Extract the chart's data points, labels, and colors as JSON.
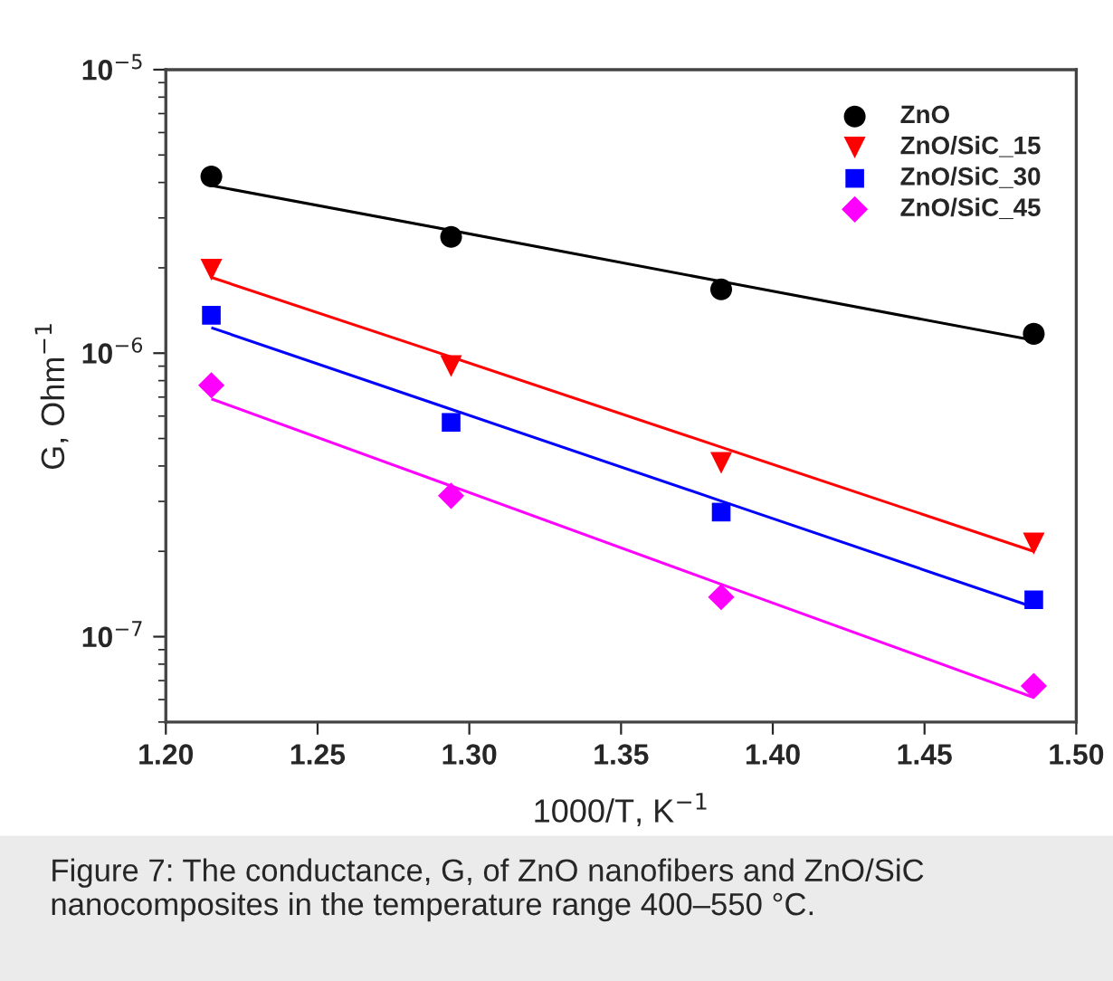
{
  "chart_data": {
    "type": "scatter",
    "xlabel": "1000/T, K$^{−1}$",
    "ylabel": "G, Ohm$^{−1}$",
    "x": [
      1.215,
      1.294,
      1.383,
      1.486
    ],
    "series": [
      {
        "name": "ZnO",
        "color": "#000000",
        "marker": "circle",
        "values": [
          4.2e-06,
          2.57e-06,
          1.68e-06,
          1.17e-06
        ]
      },
      {
        "name": "ZnO/SiC_15",
        "color": "#ff0000",
        "marker": "triangle",
        "values": [
          1.97e-06,
          9e-07,
          4.1e-07,
          2.13e-07
        ]
      },
      {
        "name": "ZnO/SiC_30",
        "color": "#0000ff",
        "marker": "square",
        "values": [
          1.36e-06,
          5.7e-07,
          2.75e-07,
          1.35e-07
        ]
      },
      {
        "name": "ZnO/SiC_45",
        "color": "#ff00ff",
        "marker": "diamond",
        "values": [
          7.7e-07,
          3.14e-07,
          1.38e-07,
          6.7e-08
        ]
      },
      {
        "type": "line",
        "color": "#000000",
        "values": [
          3.9e-06,
          2.71e-06,
          1.79e-06,
          1.11e-06
        ]
      },
      {
        "type": "line",
        "color": "#ff0000",
        "values": [
          1.85e-06,
          9.7e-07,
          4.66e-07,
          2e-07
        ]
      },
      {
        "type": "line",
        "color": "#0000ff",
        "values": [
          1.23e-06,
          6.34e-07,
          3.01e-07,
          1.27e-07
        ]
      },
      {
        "type": "line",
        "color": "#ff00ff",
        "values": [
          6.9e-07,
          3.4e-07,
          1.53e-07,
          6.1e-08
        ]
      }
    ],
    "log": "y",
    "xlim": [
      1.2,
      1.5
    ],
    "xticks": [
      {
        "value": 1.2,
        "label": "1.20"
      },
      {
        "value": 1.25,
        "label": "1.25"
      },
      {
        "value": 1.3,
        "label": "1.30"
      },
      {
        "value": 1.35,
        "label": "1.35"
      },
      {
        "value": 1.4,
        "label": "1.40"
      },
      {
        "value": 1.45,
        "label": "1.45"
      },
      {
        "value": 1.5,
        "label": "1.50"
      }
    ],
    "ylim": [
      5e-08,
      1e-05
    ],
    "yticks": [
      {
        "value": 1e-07,
        "label": "10$^{−7}$"
      },
      {
        "value": 1e-06,
        "label": "10$^{−6}$"
      },
      {
        "value": 1e-05,
        "label": "10$^{−5}$"
      }
    ],
    "grid": false,
    "legend": "top right",
    "annotations": [
      "Figure 7: The conductance, G, of ZnO nanofibers and ZnO/SiC nanocomposites in the temperature range 400–550 °C."
    ]
  }
}
